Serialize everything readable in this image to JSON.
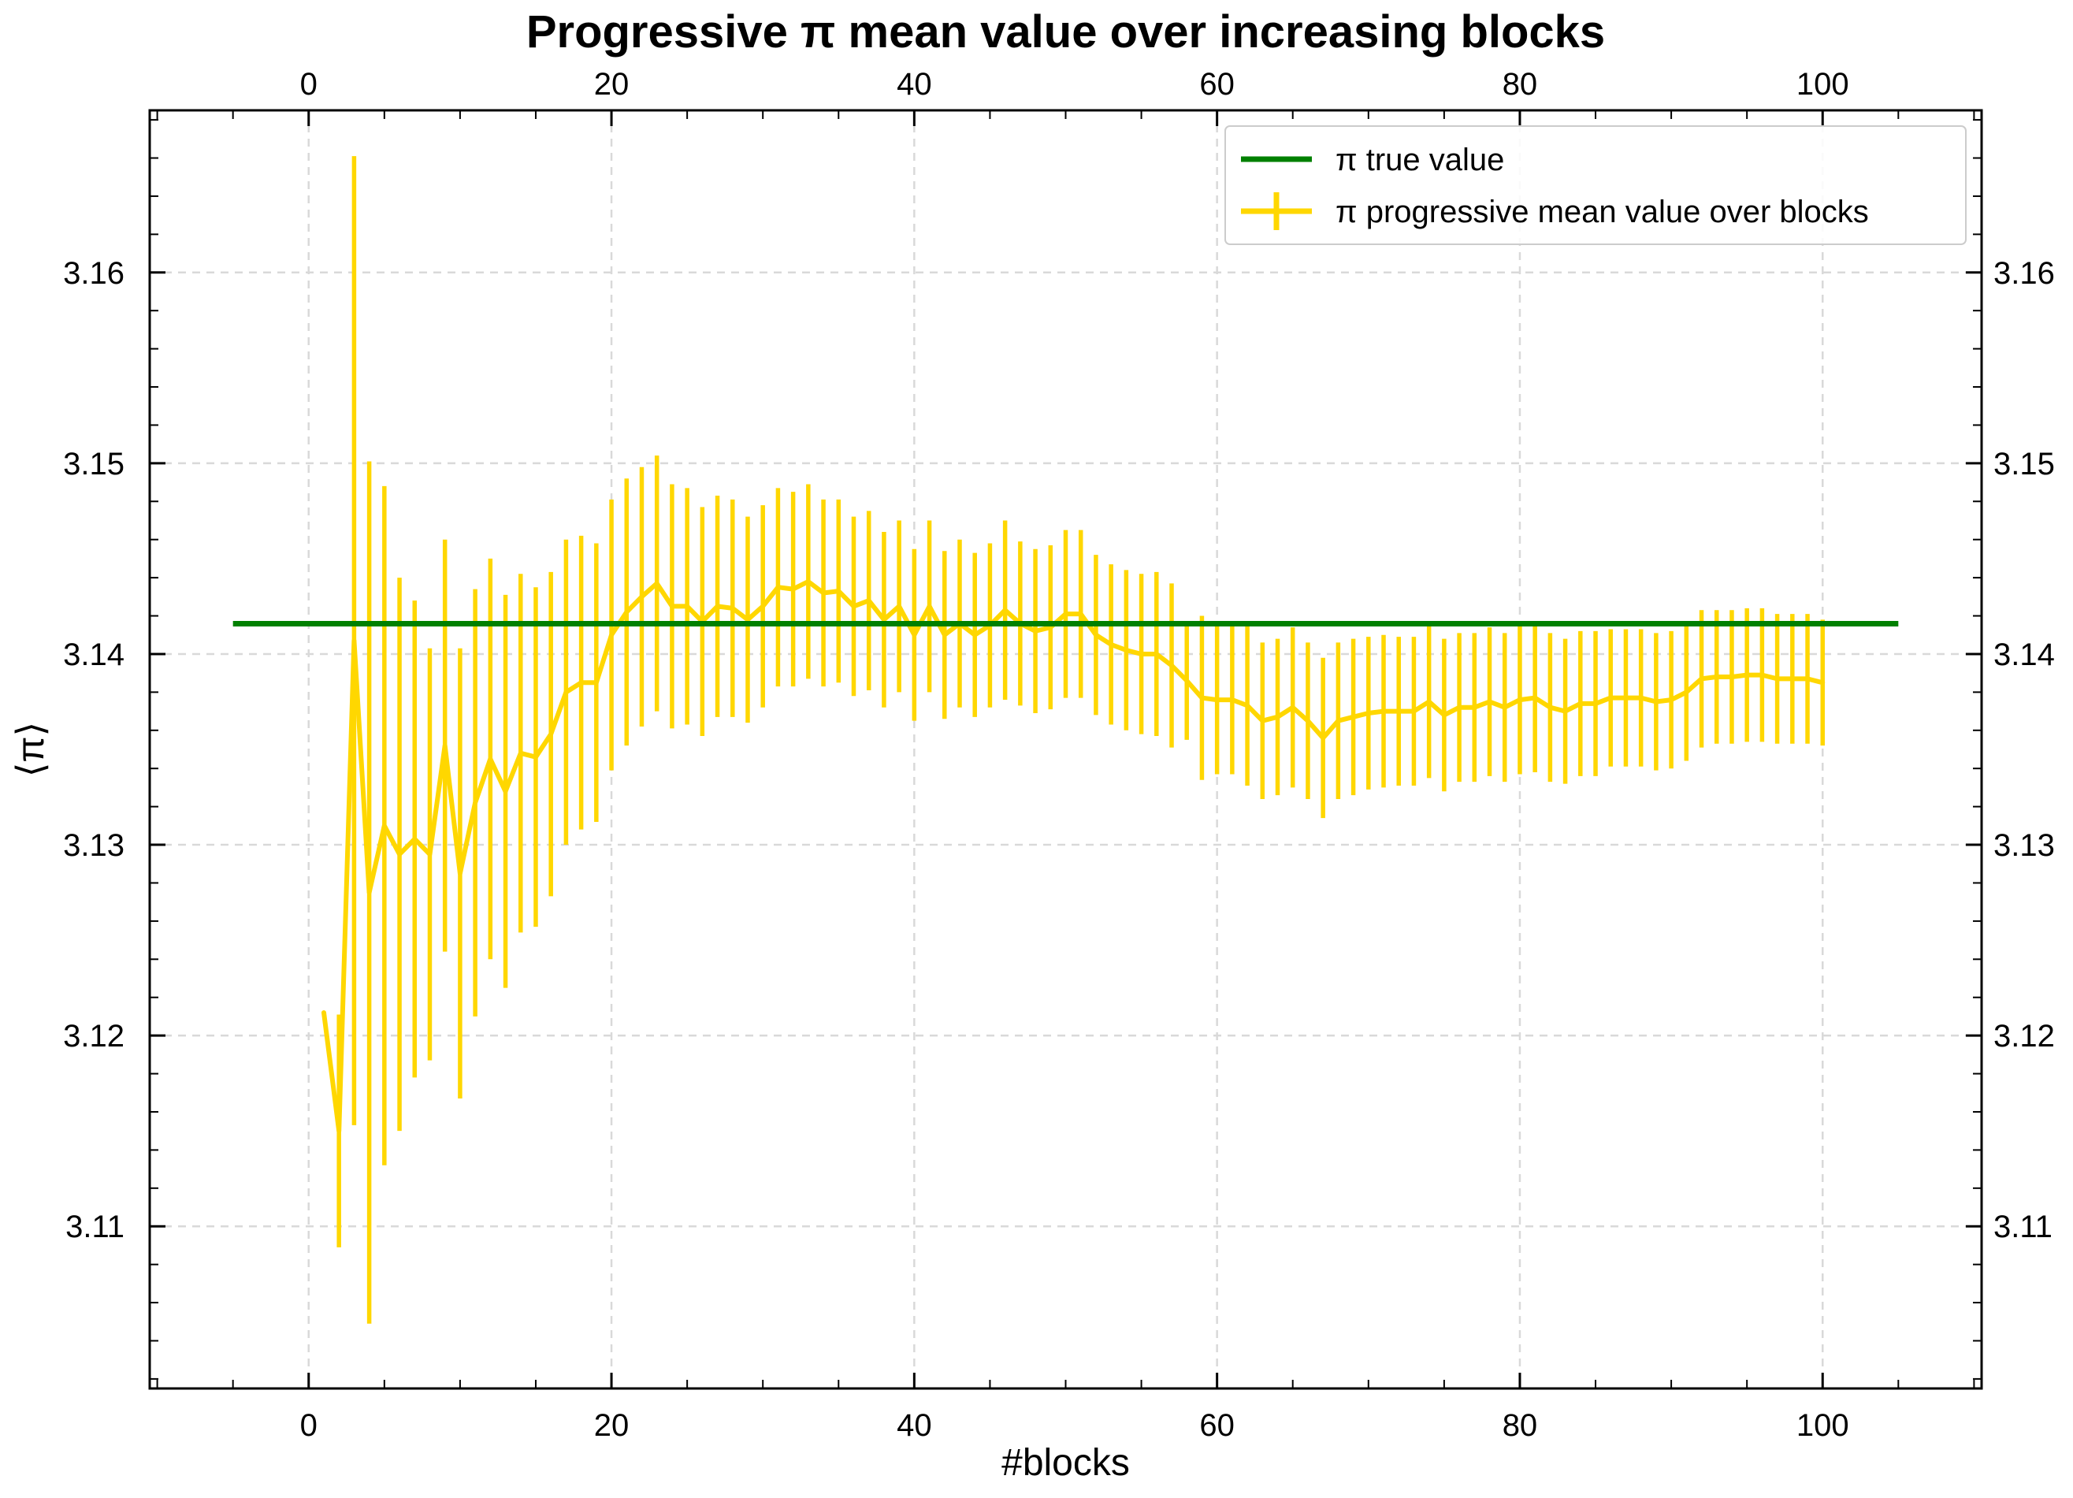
{
  "chart_data": {
    "type": "line",
    "title": "Progressive π mean value over increasing blocks",
    "xlabel": "#blocks",
    "ylabel": "⟨π⟩",
    "xlim": [
      -10.5,
      110.5
    ],
    "ylim": [
      3.1015,
      3.1685
    ],
    "x_ticks": [
      0,
      20,
      40,
      60,
      80,
      100
    ],
    "x_tick_labels": [
      "0",
      "20",
      "40",
      "60",
      "80",
      "100"
    ],
    "y_ticks": [
      3.11,
      3.12,
      3.13,
      3.14,
      3.15,
      3.16
    ],
    "y_tick_labels": [
      "3.11",
      "3.12",
      "3.13",
      "3.14",
      "3.15",
      "3.16"
    ],
    "top_axis_mirrored": true,
    "right_axis_mirrored": true,
    "grid": true,
    "legend_position": "top-right",
    "legend": [
      "π true value",
      "π progressive mean value over blocks"
    ],
    "colors": {
      "true_value": "#008000",
      "progressive_mean": "#FFD700",
      "grid": "#d9d9d9",
      "axes": "#000000"
    },
    "series": [
      {
        "name": "π true value",
        "kind": "hline",
        "y": 3.14159,
        "x_range": [
          -5,
          105
        ],
        "color": "#008000"
      },
      {
        "name": "π progressive mean value over blocks",
        "kind": "errorbar",
        "color": "#FFD700",
        "x": [
          1,
          2,
          3,
          4,
          5,
          6,
          7,
          8,
          9,
          10,
          11,
          12,
          13,
          14,
          15,
          16,
          17,
          18,
          19,
          20,
          21,
          22,
          23,
          24,
          25,
          26,
          27,
          28,
          29,
          30,
          31,
          32,
          33,
          34,
          35,
          36,
          37,
          38,
          39,
          40,
          41,
          42,
          43,
          44,
          45,
          46,
          47,
          48,
          49,
          50,
          51,
          52,
          53,
          54,
          55,
          56,
          57,
          58,
          59,
          60,
          61,
          62,
          63,
          64,
          65,
          66,
          67,
          68,
          69,
          70,
          71,
          72,
          73,
          74,
          75,
          76,
          77,
          78,
          79,
          80,
          81,
          82,
          83,
          84,
          85,
          86,
          87,
          88,
          89,
          90,
          91,
          92,
          93,
          94,
          95,
          96,
          97,
          98,
          99,
          100
        ],
        "y": [
          3.1212,
          3.115,
          3.1407,
          3.1275,
          3.131,
          3.1295,
          3.1303,
          3.1295,
          3.1352,
          3.1285,
          3.1322,
          3.1345,
          3.1328,
          3.1348,
          3.1346,
          3.1358,
          3.138,
          3.1385,
          3.1385,
          3.141,
          3.1422,
          3.143,
          3.1437,
          3.1425,
          3.1425,
          3.1417,
          3.1425,
          3.1424,
          3.1418,
          3.1425,
          3.1435,
          3.1434,
          3.1438,
          3.1432,
          3.1433,
          3.1425,
          3.1428,
          3.1418,
          3.1425,
          3.141,
          3.1425,
          3.141,
          3.1416,
          3.141,
          3.1415,
          3.1423,
          3.1416,
          3.1412,
          3.1414,
          3.1421,
          3.1421,
          3.141,
          3.1405,
          3.1402,
          3.14,
          3.14,
          3.1394,
          3.1386,
          3.1377,
          3.1376,
          3.1376,
          3.1373,
          3.1365,
          3.1367,
          3.1372,
          3.1365,
          3.1356,
          3.1365,
          3.1367,
          3.1369,
          3.137,
          3.137,
          3.137,
          3.1375,
          3.1368,
          3.1372,
          3.1372,
          3.1375,
          3.1372,
          3.1376,
          3.1377,
          3.1372,
          3.137,
          3.1374,
          3.1374,
          3.1377,
          3.1377,
          3.1377,
          3.1375,
          3.1376,
          3.138,
          3.1387,
          3.1388,
          3.1388,
          3.1389,
          3.1389,
          3.1387,
          3.1387,
          3.1387,
          3.1385
        ],
        "yerr": [
          0.0,
          0.0061,
          0.0254,
          0.0226,
          0.0178,
          0.0145,
          0.0125,
          0.0108,
          0.0108,
          0.0118,
          0.0112,
          0.0105,
          0.0103,
          0.0094,
          0.0089,
          0.0085,
          0.008,
          0.0077,
          0.0073,
          0.0071,
          0.007,
          0.0068,
          0.0067,
          0.0064,
          0.0062,
          0.006,
          0.0058,
          0.0057,
          0.0054,
          0.0053,
          0.0052,
          0.0051,
          0.0051,
          0.0049,
          0.0048,
          0.0047,
          0.0047,
          0.0046,
          0.0045,
          0.0045,
          0.0045,
          0.0044,
          0.0044,
          0.0043,
          0.0043,
          0.0047,
          0.0043,
          0.0043,
          0.0043,
          0.0044,
          0.0044,
          0.0042,
          0.0042,
          0.0042,
          0.0042,
          0.0043,
          0.0043,
          0.0031,
          0.0043,
          0.0039,
          0.0039,
          0.0042,
          0.0041,
          0.0041,
          0.0042,
          0.0041,
          0.0042,
          0.0041,
          0.0041,
          0.004,
          0.004,
          0.0039,
          0.0039,
          0.004,
          0.004,
          0.0039,
          0.0039,
          0.0039,
          0.0039,
          0.0039,
          0.0039,
          0.0039,
          0.0038,
          0.0038,
          0.0038,
          0.0036,
          0.0036,
          0.0036,
          0.0036,
          0.0036,
          0.0036,
          0.0036,
          0.0035,
          0.0035,
          0.0035,
          0.0035,
          0.0034,
          0.0034,
          0.0034,
          0.0033
        ]
      }
    ]
  }
}
